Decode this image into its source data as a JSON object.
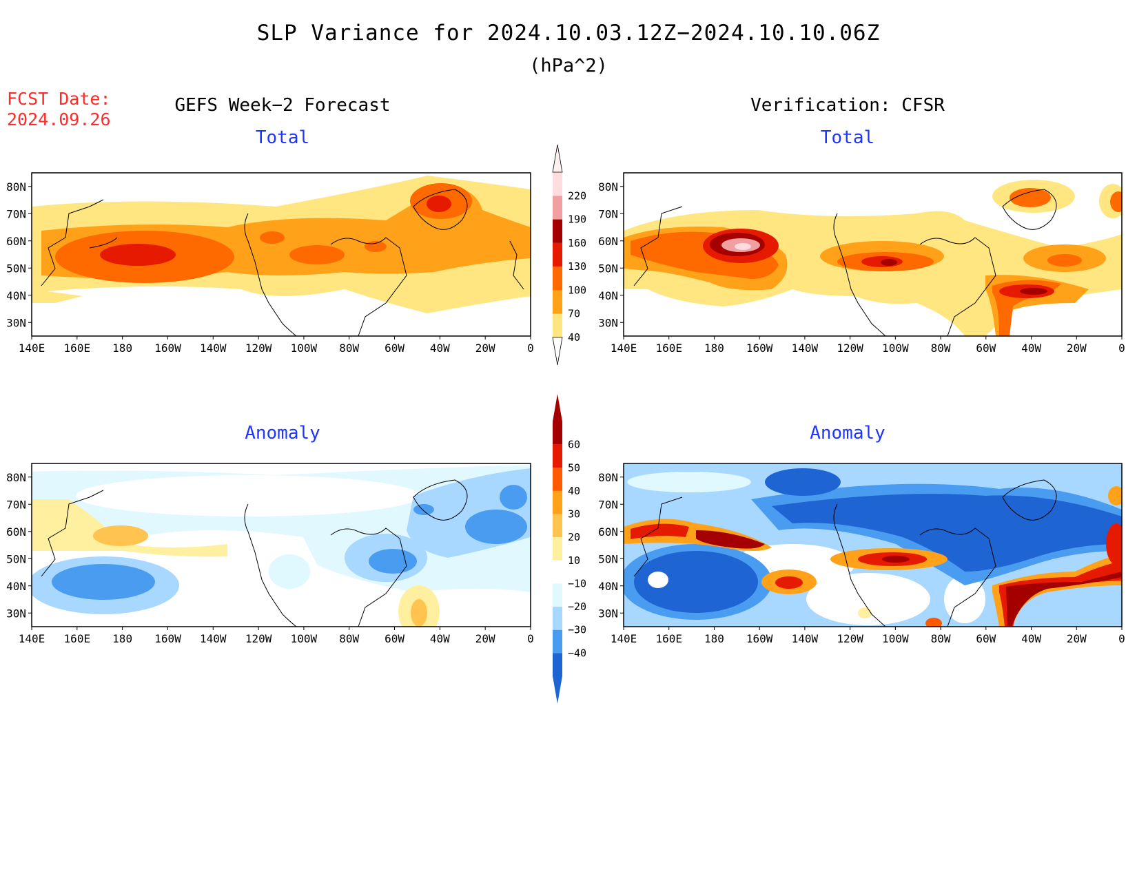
{
  "title": "SLP Variance for 2024.10.03.12Z−2024.10.10.06Z",
  "units": "(hPa^2)",
  "fcst_label": "FCST Date:",
  "fcst_date": "2024.09.26",
  "left_column_title": "GEFS Week−2 Forecast",
  "right_column_title": "Verification: CFSR",
  "panels": {
    "forecast_total": {
      "subtitle": "Total"
    },
    "verification_total": {
      "subtitle": "Total"
    },
    "forecast_anomaly": {
      "subtitle": "Anomaly"
    },
    "verification_anomaly": {
      "subtitle": "Anomaly"
    }
  },
  "axes": {
    "lat_labels": [
      "80N",
      "70N",
      "60N",
      "50N",
      "40N",
      "30N"
    ],
    "lat_values": [
      80,
      70,
      60,
      50,
      40,
      30
    ],
    "lon_labels": [
      "140E",
      "160E",
      "180",
      "160W",
      "140W",
      "120W",
      "100W",
      "80W",
      "60W",
      "40W",
      "20W",
      "0"
    ],
    "lon_values": [
      140,
      160,
      180,
      200,
      220,
      240,
      260,
      280,
      300,
      320,
      340,
      360
    ],
    "lat_range": [
      25,
      85
    ],
    "lon_range": [
      140,
      360
    ]
  },
  "total_colorbar": {
    "levels": [
      "40",
      "70",
      "100",
      "130",
      "160",
      "190",
      "220"
    ],
    "colors": [
      "#ffe680",
      "#ffa21a",
      "#ff6a00",
      "#e61a00",
      "#a50000",
      "#f0a0a0",
      "#ffdce0"
    ]
  },
  "anomaly_colorbar": {
    "levels": [
      "60",
      "50",
      "40",
      "30",
      "20",
      "10",
      "−10",
      "−20",
      "−30",
      "−40"
    ],
    "colors_top_down": [
      "#a50000",
      "#e61a00",
      "#ff5a00",
      "#ffa21a",
      "#ffc350",
      "#fff0a0",
      "#ffffff",
      "#e0f8ff",
      "#a8d8ff",
      "#4a9cf0",
      "#1e64d2"
    ]
  },
  "colors": {
    "title": "#000000",
    "fcst": "#ff2a2a",
    "subtitle": "#1e34ff"
  }
}
